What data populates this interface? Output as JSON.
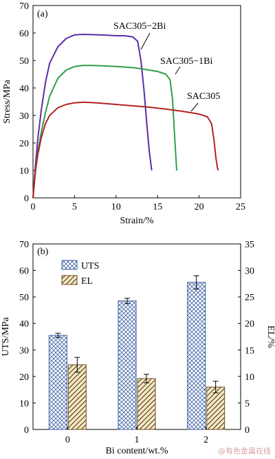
{
  "watermark": "@有色金属在线",
  "colors": {
    "SAC305-2Bi": "#5a2ca8",
    "SAC305-1Bi": "#2e9e48",
    "SAC305": "#b22222",
    "uts_bar": "#3a5fa0",
    "el_bar": "#6b4a1a",
    "el_fill": "#f3e6c0"
  },
  "chart_data": [
    {
      "type": "line",
      "panel": "(a)",
      "xlabel": "Strain/%",
      "ylabel": "Stress/MPa",
      "xlim": [
        0,
        25
      ],
      "ylim": [
        0,
        70
      ],
      "xticks": [
        "0",
        "5",
        "10",
        "15",
        "20",
        "25"
      ],
      "yticks": [
        "0",
        "10",
        "20",
        "30",
        "40",
        "50",
        "60",
        "70"
      ],
      "series": [
        {
          "name": "SAC305-2Bi",
          "color_key": "SAC305-2Bi",
          "label": "SAC305−2Bi",
          "points": [
            [
              0,
              0
            ],
            [
              0.3,
              12
            ],
            [
              0.6,
              22
            ],
            [
              1,
              32
            ],
            [
              1.5,
              42
            ],
            [
              2,
              49
            ],
            [
              3,
              55
            ],
            [
              4,
              58
            ],
            [
              5,
              59.3
            ],
            [
              6,
              59.5
            ],
            [
              7,
              59.4
            ],
            [
              8,
              59.3
            ],
            [
              9,
              59.2
            ],
            [
              10,
              59
            ],
            [
              11,
              59
            ],
            [
              12,
              58.6
            ],
            [
              12.6,
              57
            ],
            [
              13,
              50
            ],
            [
              13.4,
              38
            ],
            [
              13.7,
              27
            ],
            [
              14,
              17
            ],
            [
              14.3,
              10
            ]
          ]
        },
        {
          "name": "SAC305-1Bi",
          "color_key": "SAC305-1Bi",
          "label": "SAC305−1Bi",
          "points": [
            [
              0,
              0
            ],
            [
              0.3,
              10
            ],
            [
              0.6,
              17
            ],
            [
              1,
              24
            ],
            [
              1.5,
              31
            ],
            [
              2,
              37
            ],
            [
              3,
              43.5
            ],
            [
              4,
              46.5
            ],
            [
              5,
              47.8
            ],
            [
              6,
              48.2
            ],
            [
              7,
              48.2
            ],
            [
              8,
              48.1
            ],
            [
              10,
              47.8
            ],
            [
              12,
              47.4
            ],
            [
              13,
              47
            ],
            [
              14,
              46.5
            ],
            [
              15,
              46
            ],
            [
              16,
              45
            ],
            [
              16.5,
              43
            ],
            [
              16.8,
              36
            ],
            [
              17,
              25
            ],
            [
              17.2,
              15
            ],
            [
              17.3,
              10
            ]
          ]
        },
        {
          "name": "SAC305",
          "color_key": "SAC305",
          "label": "SAC305",
          "points": [
            [
              0,
              0
            ],
            [
              0.3,
              10
            ],
            [
              0.6,
              16
            ],
            [
              1,
              22
            ],
            [
              1.5,
              27
            ],
            [
              2,
              30
            ],
            [
              3,
              32.8
            ],
            [
              4,
              34
            ],
            [
              5,
              34.6
            ],
            [
              6,
              34.8
            ],
            [
              7,
              34.7
            ],
            [
              8,
              34.5
            ],
            [
              10,
              34
            ],
            [
              12,
              33.5
            ],
            [
              14,
              33
            ],
            [
              16,
              32.3
            ],
            [
              18,
              31.5
            ],
            [
              20,
              30.5
            ],
            [
              21,
              29.5
            ],
            [
              21.5,
              27
            ],
            [
              21.8,
              21
            ],
            [
              22,
              15
            ],
            [
              22.2,
              11
            ],
            [
              22.3,
              10
            ]
          ]
        }
      ],
      "labels": [
        {
          "text": "SAC305−2Bi",
          "x": 12.3,
          "y": 63
        },
        {
          "text": "SAC305−1Bi",
          "x": 18.8,
          "y": 50
        },
        {
          "text": "SAC305",
          "x": 20,
          "y": 36
        }
      ]
    },
    {
      "type": "bar",
      "panel": "(b)",
      "xlabel": "Bi content/wt.%",
      "ylabel": "UTS/MPa",
      "ylabel_right": "EL/%",
      "categories": [
        "0",
        "1",
        "2"
      ],
      "ylim": [
        0,
        70
      ],
      "ylim_right": [
        0,
        35
      ],
      "yticks": [
        "0",
        "10",
        "20",
        "30",
        "40",
        "50",
        "60",
        "70"
      ],
      "yticks_right": [
        "0",
        "5",
        "10",
        "15",
        "20",
        "25",
        "30",
        "35"
      ],
      "series": [
        {
          "name": "UTS",
          "axis": "left",
          "values": [
            35.5,
            48.5,
            55.5
          ],
          "errors": [
            0.8,
            1.0,
            2.5
          ]
        },
        {
          "name": "EL",
          "axis": "right",
          "values": [
            12.2,
            9.6,
            8.0
          ],
          "errors": [
            1.4,
            0.8,
            1.1
          ]
        }
      ],
      "legend": {
        "position": "top-left",
        "entries": [
          "UTS",
          "EL"
        ]
      }
    }
  ]
}
